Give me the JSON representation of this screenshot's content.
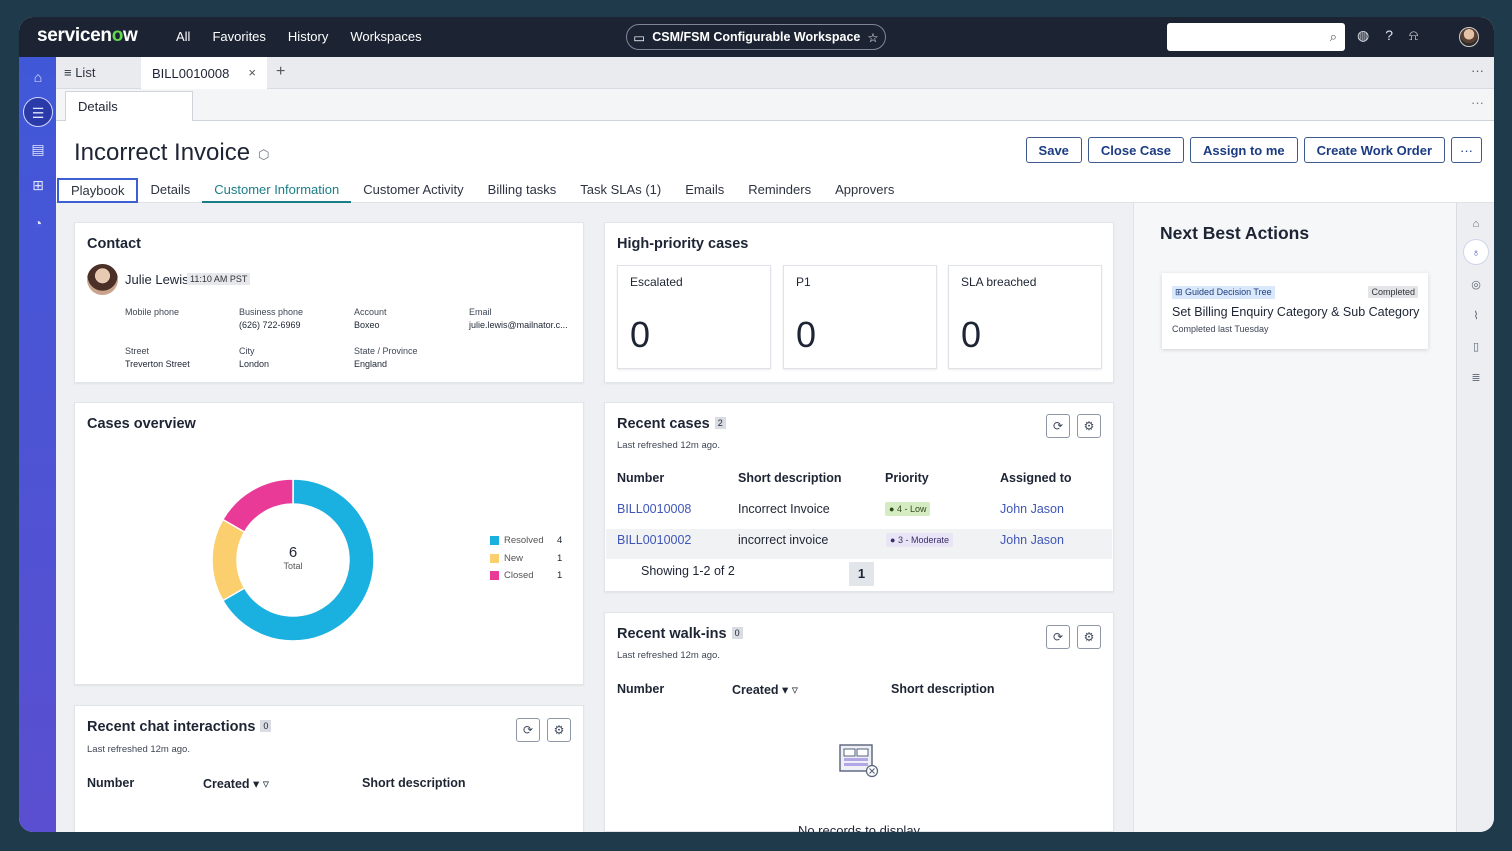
{
  "brand": {
    "logo_pre": "servicen",
    "logo_o": "o",
    "logo_post": "w"
  },
  "topnav": [
    "All",
    "Favorites",
    "History",
    "Workspaces"
  ],
  "workspace": {
    "label": "CSM/FSM Configurable Workspace"
  },
  "search": {
    "placeholder": ""
  },
  "tabs_strip": {
    "list_label": "List",
    "record_tab": "BILL0010008"
  },
  "subtab": {
    "label": "Details"
  },
  "record": {
    "title": "Incorrect Invoice",
    "buttons": {
      "save": "Save",
      "close_case": "Close Case",
      "assign_to_me": "Assign to me",
      "create_work_order": "Create Work Order",
      "more": "···"
    }
  },
  "record_tabs": [
    "Playbook",
    "Details",
    "Customer Information",
    "Customer Activity",
    "Billing tasks",
    "Task SLAs (1)",
    "Emails",
    "Reminders",
    "Approvers"
  ],
  "contact": {
    "heading": "Contact",
    "name": "Julie Lewis",
    "time": "11:10 AM PST",
    "fields": {
      "mobile_label": "Mobile phone",
      "mobile_value": "",
      "business_label": "Business phone",
      "business_value": "(626) 722-6969",
      "account_label": "Account",
      "account_value": "Boxeo",
      "email_label": "Email",
      "email_value": "julie.lewis@mailnator.c...",
      "street_label": "Street",
      "street_value": "Treverton Street",
      "city_label": "City",
      "city_value": "London",
      "state_label": "State / Province",
      "state_value": "England"
    }
  },
  "high_priority": {
    "heading": "High-priority cases",
    "boxes": [
      {
        "label": "Escalated",
        "value": "0"
      },
      {
        "label": "P1",
        "value": "0"
      },
      {
        "label": "SLA breached",
        "value": "0"
      }
    ]
  },
  "cases_overview": {
    "heading": "Cases overview",
    "center_value": "6",
    "center_label": "Total"
  },
  "chart_data": {
    "type": "pie",
    "categories": [
      "Resolved",
      "New",
      "Closed"
    ],
    "values": [
      4,
      1,
      1
    ],
    "colors": [
      "#1ab0e0",
      "#fbcf6e",
      "#ea3a98"
    ],
    "title": "Cases overview"
  },
  "recent_cases": {
    "heading": "Recent cases",
    "count": "2",
    "refreshed": "Last refreshed 12m ago.",
    "columns": [
      "Number",
      "Short description",
      "Priority",
      "Assigned to"
    ],
    "rows": [
      {
        "number": "BILL0010008",
        "description": "Incorrect Invoice",
        "priority": "4 - Low",
        "assigned": "John Jason"
      },
      {
        "number": "BILL0010002",
        "description": "incorrect invoice",
        "priority": "3 - Moderate",
        "assigned": "John Jason"
      }
    ],
    "showing": "Showing 1-2 of 2",
    "page": "1"
  },
  "recent_walkins": {
    "heading": "Recent walk-ins",
    "count": "0",
    "refreshed": "Last refreshed 12m ago.",
    "columns": [
      "Number",
      "Created",
      "Short description"
    ],
    "empty": "No records to display"
  },
  "recent_chat": {
    "heading": "Recent chat interactions",
    "count": "0",
    "refreshed": "Last refreshed 12m ago.",
    "columns": [
      "Number",
      "Created",
      "Short description"
    ]
  },
  "nba": {
    "heading": "Next Best Actions",
    "card": {
      "tag": "Guided Decision Tree",
      "status": "Completed",
      "title": "Set Billing Enquiry Category & Sub Category",
      "subtitle": "Completed last Tuesday"
    }
  },
  "icons": {
    "top": [
      "globe-icon",
      "help-icon",
      "bell-icon"
    ],
    "right_sidebar": [
      "graduation-icon",
      "lightbulb-icon",
      "compass-icon",
      "paperclip-icon",
      "document-icon",
      "list-icon"
    ]
  }
}
